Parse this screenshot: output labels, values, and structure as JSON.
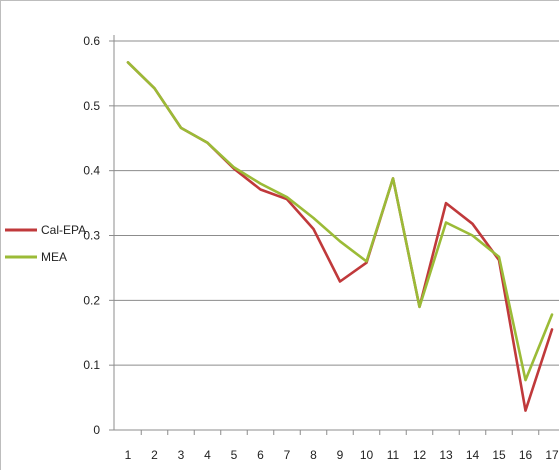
{
  "chart_data": {
    "type": "line",
    "x": [
      1,
      2,
      3,
      4,
      5,
      6,
      7,
      8,
      9,
      10,
      11,
      12,
      13,
      14,
      15,
      16,
      17
    ],
    "x_tick_labels": [
      "1",
      "2",
      "3",
      "4",
      "5",
      "6",
      "7",
      "8",
      "9",
      "10",
      "11",
      "12",
      "13",
      "14",
      "15",
      "16",
      "17"
    ],
    "y_tick_labels": [
      "0",
      "0.1",
      "0.2",
      "0.3",
      "0.4",
      "0.5",
      "0.6"
    ],
    "ylim": [
      0,
      0.6
    ],
    "grid": "horizontal",
    "legend_position": "left",
    "series": [
      {
        "name": "Cal-EPA",
        "color": "#c0393b",
        "values": [
          0.567,
          0.527,
          0.466,
          0.443,
          0.403,
          0.371,
          0.356,
          0.31,
          0.229,
          0.258,
          0.388,
          0.19,
          0.35,
          0.318,
          0.262,
          0.03,
          0.155
        ]
      },
      {
        "name": "MEA",
        "color": "#9bbb37",
        "values": [
          0.567,
          0.527,
          0.466,
          0.443,
          0.405,
          0.38,
          0.359,
          0.327,
          0.291,
          0.26,
          0.388,
          0.19,
          0.32,
          0.3,
          0.267,
          0.077,
          0.178
        ]
      }
    ]
  }
}
